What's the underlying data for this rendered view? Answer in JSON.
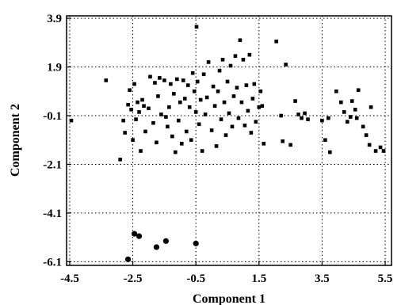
{
  "chart_data": {
    "type": "scatter",
    "title": "",
    "xlabel": "Component 1",
    "ylabel": "Component 2",
    "xlim": [
      -4.6,
      5.7
    ],
    "ylim": [
      -6.25,
      4.0
    ],
    "xticks": [
      -4.5,
      -2.5,
      -0.5,
      1.5,
      3.5,
      5.5
    ],
    "xtick_labels": [
      "-4.5",
      "-2.5",
      "-0.5",
      "1.5",
      "3.5",
      "5.5"
    ],
    "yticks": [
      3.9,
      1.9,
      -0.1,
      -2.1,
      -4.1,
      -6.1
    ],
    "ytick_labels": [
      "3.9",
      "1.9",
      "-0.1",
      "-2.1",
      "-4.1",
      "-6.1"
    ],
    "grid": true,
    "series": [
      {
        "marker": "square",
        "color": "#000000",
        "points": [
          [
            -4.45,
            -0.3
          ],
          [
            -3.35,
            1.35
          ],
          [
            -2.9,
            -1.9
          ],
          [
            -2.8,
            -0.3
          ],
          [
            -2.75,
            -0.8
          ],
          [
            -2.65,
            0.35
          ],
          [
            -2.6,
            0.95
          ],
          [
            -2.55,
            0.15
          ],
          [
            -2.5,
            -1.1
          ],
          [
            -2.45,
            1.2
          ],
          [
            -2.4,
            -0.25
          ],
          [
            -2.35,
            0.45
          ],
          [
            -2.3,
            0.05
          ],
          [
            -2.25,
            -1.55
          ],
          [
            -2.2,
            0.55
          ],
          [
            -2.15,
            0.3
          ],
          [
            -2.1,
            -0.75
          ],
          [
            -2.0,
            0.2
          ],
          [
            -1.95,
            1.5
          ],
          [
            -1.85,
            -0.4
          ],
          [
            -1.8,
            1.25
          ],
          [
            -1.75,
            -1.2
          ],
          [
            -1.7,
            0.7
          ],
          [
            -1.65,
            1.45
          ],
          [
            -1.6,
            -0.05
          ],
          [
            -1.5,
            1.35
          ],
          [
            -1.45,
            -0.15
          ],
          [
            -1.4,
            -0.55
          ],
          [
            -1.35,
            0.25
          ],
          [
            -1.3,
            1.2
          ],
          [
            -1.25,
            -0.95
          ],
          [
            -1.2,
            0.8
          ],
          [
            -1.15,
            -1.6
          ],
          [
            -1.1,
            1.4
          ],
          [
            -1.05,
            -0.3
          ],
          [
            -1.0,
            0.45
          ],
          [
            -0.95,
            -1.25
          ],
          [
            -0.9,
            1.35
          ],
          [
            -0.85,
            0.6
          ],
          [
            -0.8,
            -0.75
          ],
          [
            -0.75,
            1.15
          ],
          [
            -0.7,
            0.25
          ],
          [
            -0.65,
            -1.1
          ],
          [
            -0.6,
            1.65
          ],
          [
            -0.55,
            0.9
          ],
          [
            -0.5,
            0.05
          ],
          [
            -0.48,
            3.55
          ],
          [
            -0.45,
            1.3
          ],
          [
            -0.4,
            -0.45
          ],
          [
            -0.35,
            0.55
          ],
          [
            -0.3,
            -1.55
          ],
          [
            -0.25,
            1.6
          ],
          [
            -0.2,
            -0.05
          ],
          [
            -0.15,
            0.65
          ],
          [
            -0.1,
            2.1
          ],
          [
            0.0,
            -0.7
          ],
          [
            0.05,
            1.1
          ],
          [
            0.1,
            0.3
          ],
          [
            0.15,
            -1.35
          ],
          [
            0.2,
            0.9
          ],
          [
            0.25,
            1.75
          ],
          [
            0.3,
            -0.25
          ],
          [
            0.35,
            2.2
          ],
          [
            0.4,
            0.45
          ],
          [
            0.45,
            -0.9
          ],
          [
            0.5,
            1.3
          ],
          [
            0.55,
            0.0
          ],
          [
            0.6,
            1.95
          ],
          [
            0.65,
            -0.55
          ],
          [
            0.7,
            0.7
          ],
          [
            0.75,
            2.35
          ],
          [
            0.8,
            1.05
          ],
          [
            0.85,
            -0.2
          ],
          [
            0.9,
            3.0
          ],
          [
            0.95,
            0.45
          ],
          [
            1.0,
            2.2
          ],
          [
            1.05,
            -0.5
          ],
          [
            1.1,
            1.15
          ],
          [
            1.15,
            0.1
          ],
          [
            1.2,
            2.4
          ],
          [
            1.25,
            -0.8
          ],
          [
            1.3,
            0.6
          ],
          [
            1.35,
            1.2
          ],
          [
            1.4,
            -0.35
          ],
          [
            1.5,
            0.25
          ],
          [
            1.55,
            0.9
          ],
          [
            1.6,
            0.3
          ],
          [
            1.65,
            -1.25
          ],
          [
            2.05,
            2.95
          ],
          [
            2.2,
            -0.1
          ],
          [
            2.25,
            -1.15
          ],
          [
            2.35,
            2.0
          ],
          [
            2.5,
            -1.3
          ],
          [
            2.65,
            0.5
          ],
          [
            2.75,
            -0.05
          ],
          [
            2.85,
            -0.2
          ],
          [
            2.95,
            0.0
          ],
          [
            3.05,
            -0.25
          ],
          [
            3.5,
            -0.3
          ],
          [
            3.6,
            -1.1
          ],
          [
            3.7,
            -0.2
          ],
          [
            3.75,
            -1.6
          ],
          [
            3.95,
            0.9
          ],
          [
            4.1,
            0.45
          ],
          [
            4.2,
            0.05
          ],
          [
            4.3,
            -0.35
          ],
          [
            4.4,
            -0.15
          ],
          [
            4.45,
            0.5
          ],
          [
            4.55,
            0.15
          ],
          [
            4.6,
            -0.2
          ],
          [
            4.65,
            0.95
          ],
          [
            4.8,
            -0.55
          ],
          [
            4.9,
            -0.9
          ],
          [
            5.0,
            -1.3
          ],
          [
            5.05,
            0.25
          ],
          [
            5.2,
            -1.55
          ],
          [
            5.35,
            -1.4
          ],
          [
            5.45,
            -1.55
          ]
        ]
      },
      {
        "marker": "circle",
        "color": "#000000",
        "points": [
          [
            -2.65,
            -6.0
          ],
          [
            -2.45,
            -4.95
          ],
          [
            -2.3,
            -5.05
          ],
          [
            -1.75,
            -5.5
          ],
          [
            -1.45,
            -5.25
          ],
          [
            -0.5,
            -5.35
          ]
        ]
      }
    ]
  }
}
